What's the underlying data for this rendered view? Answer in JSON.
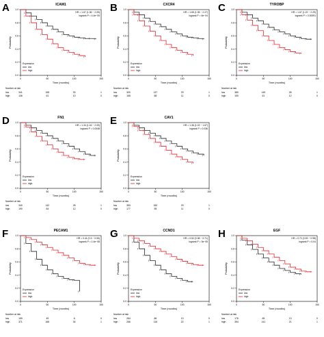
{
  "figure": {
    "panels": [
      {
        "letter": "A",
        "title": "ICAM1",
        "hr": "HR = 1.67 (1.36 − 2.05)",
        "logrank": "logrank P = 4.4e−05"
      },
      {
        "letter": "B",
        "title": "CXCR4",
        "hr": "HR = 1.65 (1.35 − 2.27)",
        "logrank": "logrank P = 6e−04"
      },
      {
        "letter": "C",
        "title": "TYROBP",
        "hr": "HR = 1.67 (1.22 − 2.29)",
        "logrank": "logrank P = 0.00091"
      },
      {
        "letter": "D",
        "title": "FN1",
        "hr": "HR = 1.34 (1.16 − 2.09)",
        "logrank": "logrank P = 0.0048"
      },
      {
        "letter": "E",
        "title": "CAV1",
        "hr": "HR = 1.36 (1.02 − 1.67)",
        "logrank": "logrank P = 0.036"
      },
      {
        "letter": "F",
        "title": "PECAM1",
        "hr": "HR = 0.41 (0.3 − 0.55)",
        "logrank": "logrank P = 1.4e−08"
      },
      {
        "letter": "G",
        "title": "CCND1",
        "hr": "HR = 0.52 (0.38 − 0.71)",
        "logrank": "logrank P = 3e−05"
      },
      {
        "letter": "H",
        "title": "EGF",
        "hr": "HR = 0.72 (0.53 − 0.98)",
        "logrank": "logrank P = 0.04"
      }
    ],
    "common": {
      "ylabel": "Probability",
      "xlabel": "Time (months)",
      "legend_title": "Expression",
      "legend_low": "low",
      "legend_high": "high",
      "risk_title": "Number at risk",
      "colors": {
        "low": "#222222",
        "high": "#e8202a"
      }
    }
  },
  "chart_data": [
    {
      "type": "line",
      "title": "ICAM1",
      "xlabel": "Time (months)",
      "ylabel": "Probability",
      "xlim": [
        0,
        150
      ],
      "ylim": [
        0,
        1
      ],
      "xticks": [
        0,
        50,
        100,
        150
      ],
      "yticks": [
        0.0,
        0.2,
        0.4,
        0.6,
        0.8,
        1.0
      ],
      "series": [
        {
          "name": "low",
          "x": [
            0,
            10,
            20,
            30,
            40,
            50,
            60,
            70,
            80,
            90,
            100,
            110,
            120,
            130,
            140
          ],
          "y": [
            1,
            0.95,
            0.9,
            0.85,
            0.8,
            0.75,
            0.7,
            0.66,
            0.62,
            0.6,
            0.58,
            0.57,
            0.56,
            0.56,
            0.55
          ]
        },
        {
          "name": "high",
          "x": [
            0,
            10,
            20,
            30,
            40,
            50,
            60,
            70,
            80,
            90,
            100,
            110,
            120
          ],
          "y": [
            1,
            0.9,
            0.8,
            0.7,
            0.62,
            0.55,
            0.48,
            0.42,
            0.38,
            0.35,
            0.32,
            0.3,
            0.28
          ]
        }
      ],
      "at_risk": {
        "times": [
          0,
          50,
          100,
          150
        ],
        "low": [
          "341",
          "155",
          "30",
          "1"
        ],
        "high": [
          "136",
          "61",
          "10",
          "0"
        ]
      }
    },
    {
      "type": "line",
      "title": "CXCR4",
      "xlabel": "Time (months)",
      "ylabel": "Probability",
      "xlim": [
        0,
        150
      ],
      "ylim": [
        0,
        1
      ],
      "xticks": [
        0,
        50,
        100,
        150
      ],
      "yticks": [
        0.0,
        0.2,
        0.4,
        0.6,
        0.8,
        1.0
      ],
      "series": [
        {
          "name": "low",
          "x": [
            0,
            10,
            20,
            30,
            40,
            50,
            60,
            70,
            80,
            90,
            100,
            110,
            120,
            130,
            140
          ],
          "y": [
            1,
            0.96,
            0.92,
            0.87,
            0.82,
            0.78,
            0.74,
            0.7,
            0.66,
            0.63,
            0.6,
            0.58,
            0.57,
            0.56,
            0.55
          ]
        },
        {
          "name": "high",
          "x": [
            0,
            10,
            20,
            30,
            40,
            50,
            60,
            70,
            80,
            90,
            100,
            110,
            120
          ],
          "y": [
            1,
            0.92,
            0.83,
            0.75,
            0.67,
            0.6,
            0.53,
            0.47,
            0.42,
            0.38,
            0.35,
            0.32,
            0.3
          ]
        }
      ],
      "at_risk": {
        "times": [
          0,
          50,
          100,
          150
        ],
        "low": [
          "300",
          "137",
          "29",
          "1"
        ],
        "high": [
          "165",
          "68",
          "11",
          "0"
        ]
      }
    },
    {
      "type": "line",
      "title": "TYROBP",
      "xlabel": "Time (months)",
      "ylabel": "Probability",
      "xlim": [
        0,
        150
      ],
      "ylim": [
        0,
        1
      ],
      "xticks": [
        0,
        50,
        100,
        150
      ],
      "yticks": [
        0.0,
        0.2,
        0.4,
        0.6,
        0.8,
        1.0
      ],
      "series": [
        {
          "name": "low",
          "x": [
            0,
            10,
            20,
            30,
            40,
            50,
            60,
            70,
            80,
            90,
            100,
            110,
            120,
            130,
            140
          ],
          "y": [
            1,
            0.96,
            0.92,
            0.87,
            0.83,
            0.78,
            0.73,
            0.69,
            0.66,
            0.63,
            0.6,
            0.58,
            0.56,
            0.55,
            0.55
          ]
        },
        {
          "name": "high",
          "x": [
            0,
            10,
            20,
            30,
            40,
            50,
            60,
            70,
            80,
            90,
            100,
            110,
            120
          ],
          "y": [
            1,
            0.92,
            0.84,
            0.76,
            0.68,
            0.6,
            0.53,
            0.47,
            0.42,
            0.39,
            0.36,
            0.34,
            0.33
          ]
        }
      ],
      "at_risk": {
        "times": [
          0,
          50,
          100,
          150
        ],
        "low": [
          "380",
          "149",
          "28",
          "1"
        ],
        "high": [
          "150",
          "61",
          "12",
          "0"
        ]
      }
    },
    {
      "type": "line",
      "title": "FN1",
      "xlabel": "Time (months)",
      "ylabel": "Probability",
      "xlim": [
        0,
        150
      ],
      "ylim": [
        0,
        1
      ],
      "xticks": [
        0,
        50,
        100,
        150
      ],
      "yticks": [
        0.0,
        0.2,
        0.4,
        0.6,
        0.8,
        1.0
      ],
      "series": [
        {
          "name": "low",
          "x": [
            0,
            10,
            20,
            30,
            40,
            50,
            60,
            70,
            80,
            90,
            100,
            110,
            120,
            130,
            140
          ],
          "y": [
            1,
            0.96,
            0.92,
            0.88,
            0.84,
            0.8,
            0.76,
            0.72,
            0.68,
            0.64,
            0.6,
            0.56,
            0.52,
            0.5,
            0.5
          ]
        },
        {
          "name": "high",
          "x": [
            0,
            10,
            20,
            30,
            40,
            50,
            60,
            70,
            80,
            90,
            100,
            110,
            120
          ],
          "y": [
            1,
            0.93,
            0.86,
            0.79,
            0.72,
            0.66,
            0.6,
            0.55,
            0.5,
            0.47,
            0.45,
            0.44,
            0.44
          ]
        }
      ],
      "at_risk": {
        "times": [
          0,
          50,
          100,
          150
        ],
        "low": [
          "340",
          "142",
          "28",
          "1"
        ],
        "high": [
          "190",
          "64",
          "12",
          "0"
        ]
      }
    },
    {
      "type": "line",
      "title": "CAV1",
      "xlabel": "Time (months)",
      "ylabel": "Probability",
      "xlim": [
        0,
        150
      ],
      "ylim": [
        0,
        1
      ],
      "xticks": [
        0,
        50,
        100,
        150
      ],
      "yticks": [
        0.0,
        0.2,
        0.4,
        0.6,
        0.8,
        1.0
      ],
      "series": [
        {
          "name": "low",
          "x": [
            0,
            10,
            20,
            30,
            40,
            50,
            60,
            70,
            80,
            90,
            100,
            110,
            120,
            130,
            140
          ],
          "y": [
            1,
            0.96,
            0.92,
            0.88,
            0.84,
            0.8,
            0.76,
            0.72,
            0.68,
            0.64,
            0.6,
            0.57,
            0.54,
            0.52,
            0.5
          ]
        },
        {
          "name": "high",
          "x": [
            0,
            10,
            20,
            30,
            40,
            50,
            60,
            70,
            80,
            90,
            100,
            110,
            120
          ],
          "y": [
            1,
            0.94,
            0.88,
            0.82,
            0.76,
            0.7,
            0.64,
            0.58,
            0.52,
            0.48,
            0.44,
            0.4,
            0.38
          ]
        }
      ],
      "at_risk": {
        "times": [
          0,
          50,
          100,
          150
        ],
        "low": [
          "353",
          "150",
          "29",
          "1"
        ],
        "high": [
          "177",
          "55",
          "11",
          "0"
        ]
      }
    },
    {
      "type": "line",
      "title": "PECAM1",
      "xlabel": "Time (months)",
      "ylabel": "Probability",
      "xlim": [
        0,
        150
      ],
      "ylim": [
        0,
        1
      ],
      "xticks": [
        0,
        50,
        100,
        150
      ],
      "yticks": [
        0.0,
        0.2,
        0.4,
        0.6,
        0.8,
        1.0
      ],
      "series": [
        {
          "name": "low",
          "x": [
            0,
            10,
            20,
            30,
            40,
            50,
            60,
            70,
            80,
            90,
            100,
            110
          ],
          "y": [
            1,
            0.88,
            0.76,
            0.64,
            0.55,
            0.48,
            0.42,
            0.38,
            0.35,
            0.33,
            0.32,
            0.15
          ]
        },
        {
          "name": "high",
          "x": [
            0,
            10,
            20,
            30,
            40,
            50,
            60,
            70,
            80,
            90,
            100,
            110,
            120,
            130,
            140
          ],
          "y": [
            1,
            0.97,
            0.94,
            0.9,
            0.86,
            0.82,
            0.78,
            0.74,
            0.7,
            0.66,
            0.62,
            0.58,
            0.56,
            0.55,
            0.55
          ]
        }
      ],
      "at_risk": {
        "times": [
          0,
          50,
          100,
          150
        ],
        "low": [
          "159",
          "49",
          "6",
          "0"
        ],
        "high": [
          "371",
          "166",
          "34",
          "1"
        ]
      }
    },
    {
      "type": "line",
      "title": "CCND1",
      "xlabel": "Time (months)",
      "ylabel": "Probability",
      "xlim": [
        0,
        150
      ],
      "ylim": [
        0,
        1
      ],
      "xticks": [
        0,
        50,
        100,
        150
      ],
      "yticks": [
        0.0,
        0.2,
        0.4,
        0.6,
        0.8,
        1.0
      ],
      "series": [
        {
          "name": "low",
          "x": [
            0,
            10,
            20,
            30,
            40,
            50,
            60,
            70,
            80,
            90,
            100,
            110,
            120
          ],
          "y": [
            1,
            0.9,
            0.8,
            0.7,
            0.62,
            0.55,
            0.48,
            0.42,
            0.38,
            0.35,
            0.32,
            0.3,
            0.3
          ]
        },
        {
          "name": "high",
          "x": [
            0,
            10,
            20,
            30,
            40,
            50,
            60,
            70,
            80,
            90,
            100,
            110,
            120,
            130,
            140
          ],
          "y": [
            1,
            0.96,
            0.92,
            0.88,
            0.84,
            0.8,
            0.76,
            0.72,
            0.68,
            0.64,
            0.61,
            0.58,
            0.56,
            0.55,
            0.55
          ]
        }
      ],
      "at_risk": {
        "times": [
          0,
          50,
          100,
          150
        ],
        "low": [
          "264",
          "86",
          "13",
          "0"
        ],
        "high": [
          "266",
          "116",
          "22",
          "1"
        ]
      }
    },
    {
      "type": "line",
      "title": "EGF",
      "xlabel": "Time (months)",
      "ylabel": "Probability",
      "xlim": [
        0,
        150
      ],
      "ylim": [
        0,
        1
      ],
      "xticks": [
        0,
        50,
        100,
        150
      ],
      "yticks": [
        0.0,
        0.2,
        0.4,
        0.6,
        0.8,
        1.0
      ],
      "series": [
        {
          "name": "low",
          "x": [
            0,
            10,
            20,
            30,
            40,
            50,
            60,
            70,
            80,
            90,
            100,
            110,
            120
          ],
          "y": [
            1,
            0.93,
            0.86,
            0.79,
            0.72,
            0.66,
            0.6,
            0.55,
            0.5,
            0.47,
            0.44,
            0.42,
            0.41
          ]
        },
        {
          "name": "high",
          "x": [
            0,
            10,
            20,
            30,
            40,
            50,
            60,
            70,
            80,
            90,
            100,
            110,
            120,
            130,
            140
          ],
          "y": [
            1,
            0.96,
            0.92,
            0.87,
            0.82,
            0.77,
            0.72,
            0.67,
            0.62,
            0.57,
            0.52,
            0.49,
            0.46,
            0.45,
            0.45
          ]
        }
      ],
      "at_risk": {
        "times": [
          0,
          50,
          100,
          150
        ],
        "low": [
          "176",
          "65",
          "13",
          "0"
        ],
        "high": [
          "354",
          "141",
          "21",
          "1"
        ]
      }
    }
  ]
}
